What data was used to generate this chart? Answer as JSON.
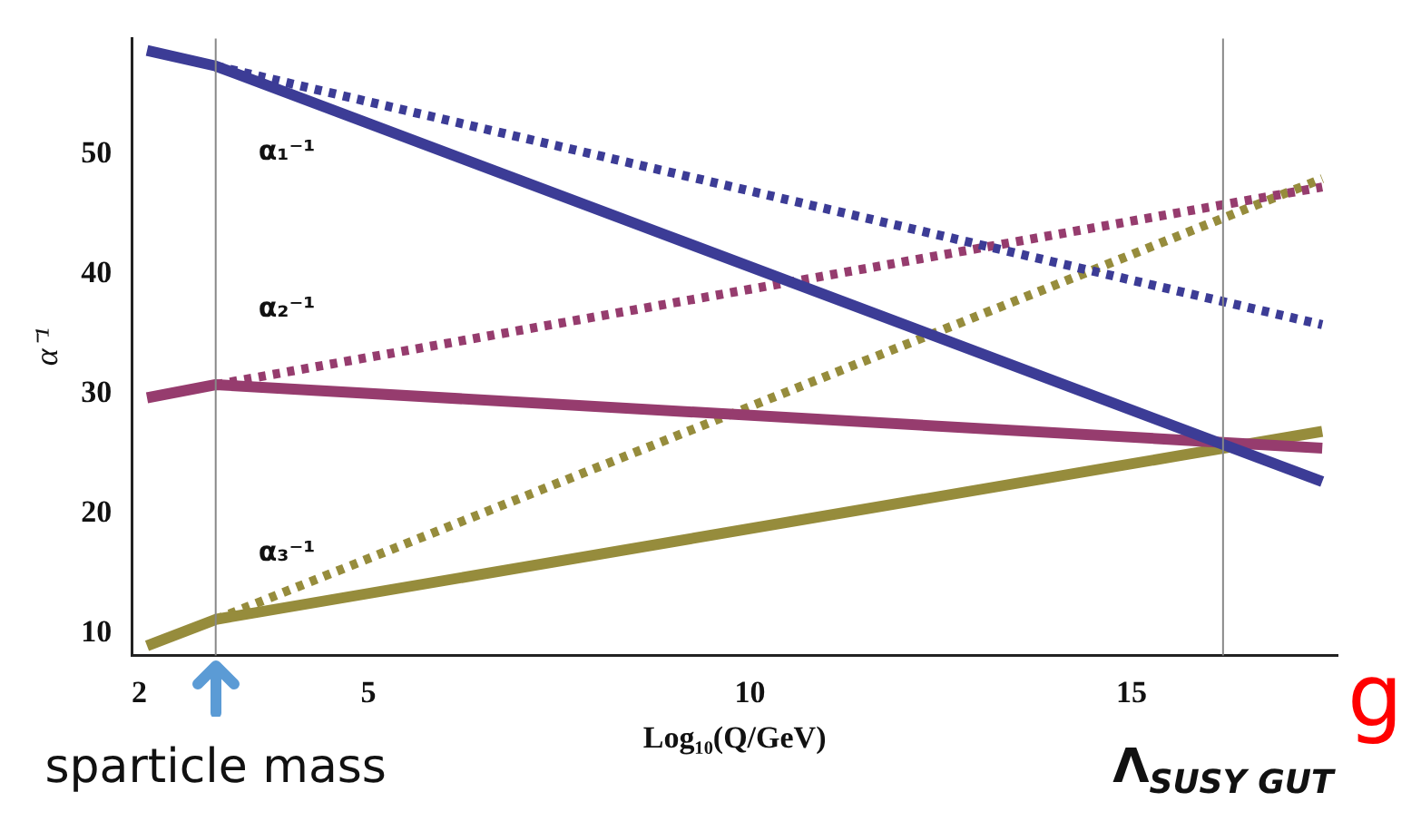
{
  "chart_data": {
    "type": "line",
    "xlabel": "Log₁₀(Q/GeV)",
    "ylabel": "α⁻¹",
    "xlim": [
      1.9,
      17.7
    ],
    "ylim": [
      8.2,
      59.7
    ],
    "xticks": [
      2,
      5,
      10,
      15
    ],
    "yticks": [
      10,
      20,
      30,
      40,
      50
    ],
    "grid": false,
    "legend": false,
    "marker": "none",
    "series": [
      {
        "color": "#3c3c96",
        "line_style": "solid",
        "x": [
          2.1,
          3,
          17.5
        ],
        "values": [
          58.7,
          57.4,
          22.7
        ]
      },
      {
        "color": "#3c3c96",
        "line_style": "dotted",
        "x": [
          3,
          17.5
        ],
        "values": [
          57.4,
          35.8
        ]
      },
      {
        "color": "#963c6e",
        "line_style": "solid",
        "x": [
          2.1,
          3,
          17.5
        ],
        "values": [
          29.7,
          30.8,
          25.5
        ]
      },
      {
        "color": "#963c6e",
        "line_style": "dotted",
        "x": [
          3,
          17.5
        ],
        "values": [
          30.8,
          47.3
        ]
      },
      {
        "color": "#968c3c",
        "line_style": "solid",
        "x": [
          2.1,
          3,
          17.5
        ],
        "values": [
          9.0,
          11.2,
          26.9
        ]
      },
      {
        "color": "#968c3c",
        "line_style": "dotted",
        "x": [
          3,
          17.5
        ],
        "values": [
          11.2,
          48.0
        ]
      }
    ],
    "ref_lines": [
      {
        "axis": "x",
        "value": 3,
        "label": "sparticle mass"
      },
      {
        "axis": "x",
        "value": 16.2,
        "label": "Λ$_{SUSY GUT}$"
      }
    ],
    "annotations": [
      "α₁⁻¹",
      "α₂⁻¹",
      "α₃⁻¹",
      "g"
    ]
  }
}
